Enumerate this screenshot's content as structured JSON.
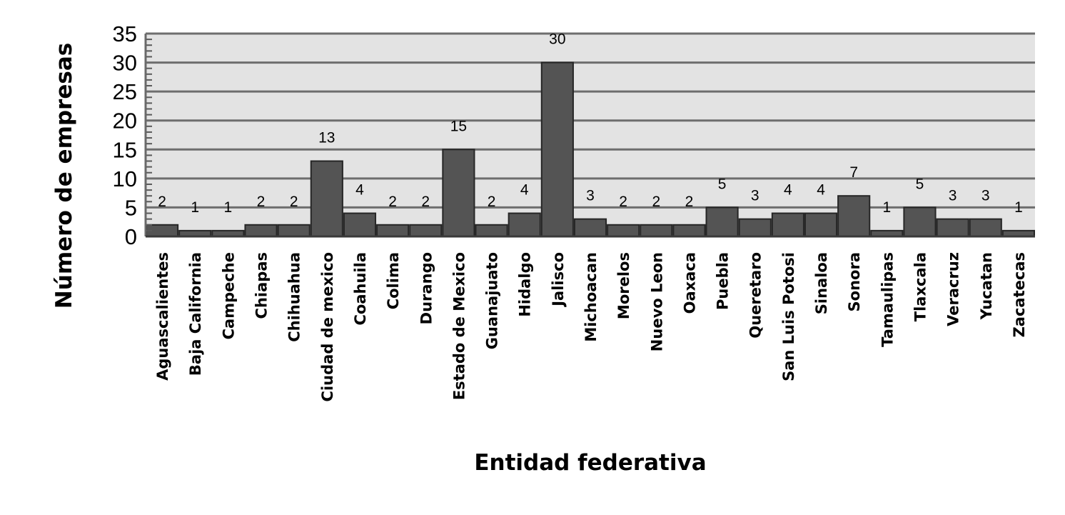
{
  "chart_data": {
    "type": "bar",
    "xlabel": "Entidad federativa",
    "ylabel": "Número de empresas",
    "ylim": [
      0,
      35
    ],
    "yticks": [
      0,
      5,
      10,
      15,
      20,
      25,
      30,
      35
    ],
    "grid": true,
    "legend": "none",
    "colors": {
      "bar": "#545454",
      "bar_stroke": "#262626",
      "plot_bg": "#e3e3e3",
      "grid": "#6e6e6e"
    },
    "categories": [
      "Aguascalientes",
      "Baja California",
      "Campeche",
      "Chiapas",
      "Chihuahua",
      "Ciudad de mexico",
      "Coahuila",
      "Colima",
      "Durango",
      "Estado de Mexico",
      "Guanajuato",
      "Hidalgo",
      "Jalisco",
      "Michoacan",
      "Morelos",
      "Nuevo Leon",
      "Oaxaca",
      "Puebla",
      "Queretaro",
      "San Luis Potosi",
      "Sinaloa",
      "Sonora",
      "Tamaulipas",
      "Tlaxcala",
      "Veracruz",
      "Yucatan",
      "Zacatecas"
    ],
    "values": [
      2,
      1,
      1,
      2,
      2,
      13,
      4,
      2,
      2,
      15,
      2,
      4,
      30,
      3,
      2,
      2,
      2,
      5,
      3,
      4,
      4,
      7,
      1,
      5,
      3,
      3,
      1
    ]
  }
}
